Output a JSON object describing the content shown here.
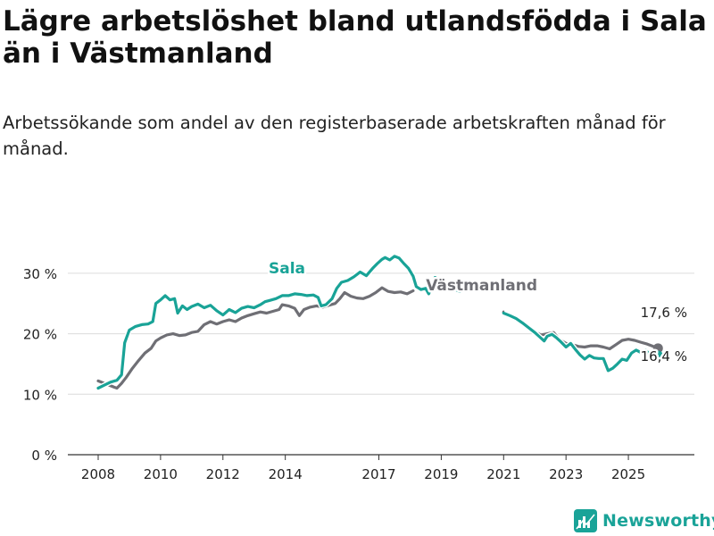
{
  "header": {
    "title": "Lägre arbetslöshet bland utlandsfödda i Sala än i Västmanland",
    "subtitle": "Arbetssökande som andel av den registerbaserade arbetskraften månad för månad."
  },
  "brand": {
    "name": "Newsworthy",
    "icon": "newsworthy-logo-icon",
    "color": "#1aa398"
  },
  "chart_data": {
    "type": "line",
    "title": "Lägre arbetslöshet bland utlandsfödda i Sala än i Västmanland",
    "subtitle": "Arbetssökande som andel av den registerbaserade arbetskraften månad för månad.",
    "xlabel": "",
    "ylabel": "",
    "xlim": [
      2008.0,
      2026.2
    ],
    "ylim": [
      0,
      35
    ],
    "grid": true,
    "x_ticks": [
      2008,
      2010,
      2012,
      2014,
      2017,
      2019,
      2021,
      2023,
      2025
    ],
    "x_tick_labels": [
      "2008",
      "2010",
      "2012",
      "2014",
      "2017",
      "2019",
      "2021",
      "2023",
      "2025"
    ],
    "y_ticks": [
      0,
      10,
      20,
      30
    ],
    "y_tick_labels": [
      "0 %",
      "10 %",
      "20 %",
      "30 %"
    ],
    "series": [
      {
        "name": "Västmanland",
        "label": "Västmanland",
        "color": "#6f6f75",
        "end_label": "17,6 %",
        "points": [
          [
            2008.0,
            12.2
          ],
          [
            2008.3,
            11.6
          ],
          [
            2008.5,
            11.2
          ],
          [
            2008.6,
            11.0
          ],
          [
            2008.75,
            11.8
          ],
          [
            2008.9,
            12.8
          ],
          [
            2009.1,
            14.3
          ],
          [
            2009.3,
            15.6
          ],
          [
            2009.5,
            16.8
          ],
          [
            2009.7,
            17.6
          ],
          [
            2009.85,
            18.8
          ],
          [
            2010.0,
            19.3
          ],
          [
            2010.2,
            19.8
          ],
          [
            2010.4,
            20.0
          ],
          [
            2010.6,
            19.7
          ],
          [
            2010.8,
            19.8
          ],
          [
            2011.0,
            20.2
          ],
          [
            2011.2,
            20.4
          ],
          [
            2011.4,
            21.5
          ],
          [
            2011.6,
            22.0
          ],
          [
            2011.8,
            21.6
          ],
          [
            2012.0,
            22.0
          ],
          [
            2012.2,
            22.3
          ],
          [
            2012.4,
            22.0
          ],
          [
            2012.6,
            22.6
          ],
          [
            2012.8,
            23.0
          ],
          [
            2013.0,
            23.3
          ],
          [
            2013.2,
            23.6
          ],
          [
            2013.4,
            23.4
          ],
          [
            2013.6,
            23.7
          ],
          [
            2013.8,
            24.0
          ],
          [
            2013.9,
            24.8
          ],
          [
            2014.1,
            24.6
          ],
          [
            2014.3,
            24.2
          ],
          [
            2014.45,
            23.0
          ],
          [
            2014.6,
            24.0
          ],
          [
            2014.8,
            24.4
          ],
          [
            2015.0,
            24.6
          ],
          [
            2015.2,
            24.4
          ],
          [
            2015.4,
            24.7
          ],
          [
            2015.6,
            25.0
          ],
          [
            2015.75,
            25.8
          ],
          [
            2015.9,
            26.8
          ],
          [
            2016.1,
            26.2
          ],
          [
            2016.3,
            25.9
          ],
          [
            2016.5,
            25.8
          ],
          [
            2016.7,
            26.2
          ],
          [
            2016.9,
            26.8
          ],
          [
            2017.1,
            27.6
          ],
          [
            2017.3,
            27.0
          ],
          [
            2017.5,
            26.8
          ],
          [
            2017.7,
            26.9
          ],
          [
            2017.9,
            26.6
          ],
          [
            2018.1,
            27.1
          ]
        ]
      },
      {
        "name": "Västmanland (senare)",
        "label": "",
        "color": "#6f6f75",
        "points": [
          [
            2021.0,
            23.6
          ],
          [
            2021.2,
            23.0
          ],
          [
            2021.4,
            22.4
          ],
          [
            2021.6,
            21.6
          ],
          [
            2021.8,
            20.9
          ],
          [
            2022.0,
            20.3
          ],
          [
            2022.2,
            19.8
          ],
          [
            2022.4,
            20.0
          ],
          [
            2022.6,
            20.2
          ],
          [
            2022.8,
            19.0
          ],
          [
            2023.0,
            18.4
          ],
          [
            2023.2,
            18.2
          ],
          [
            2023.4,
            17.9
          ],
          [
            2023.6,
            17.8
          ],
          [
            2023.8,
            18.0
          ],
          [
            2024.0,
            18.0
          ],
          [
            2024.2,
            17.8
          ],
          [
            2024.4,
            17.5
          ],
          [
            2024.6,
            18.2
          ],
          [
            2024.8,
            18.9
          ],
          [
            2025.0,
            19.1
          ],
          [
            2025.2,
            18.9
          ],
          [
            2025.4,
            18.6
          ],
          [
            2025.6,
            18.3
          ],
          [
            2025.8,
            17.9
          ],
          [
            2025.95,
            17.6
          ]
        ]
      },
      {
        "name": "Sala",
        "label": "Sala",
        "color": "#19a397",
        "end_label": "16,4 %",
        "points": [
          [
            2008.0,
            11.0
          ],
          [
            2008.2,
            11.5
          ],
          [
            2008.4,
            12.0
          ],
          [
            2008.6,
            12.3
          ],
          [
            2008.75,
            13.2
          ],
          [
            2008.85,
            18.5
          ],
          [
            2009.0,
            20.6
          ],
          [
            2009.2,
            21.2
          ],
          [
            2009.4,
            21.5
          ],
          [
            2009.6,
            21.6
          ],
          [
            2009.75,
            22.0
          ],
          [
            2009.85,
            25.0
          ],
          [
            2010.0,
            25.6
          ],
          [
            2010.15,
            26.3
          ],
          [
            2010.3,
            25.6
          ],
          [
            2010.45,
            25.8
          ],
          [
            2010.55,
            23.4
          ],
          [
            2010.7,
            24.6
          ],
          [
            2010.85,
            24.0
          ],
          [
            2011.0,
            24.5
          ],
          [
            2011.2,
            24.9
          ],
          [
            2011.4,
            24.3
          ],
          [
            2011.6,
            24.7
          ],
          [
            2011.8,
            23.8
          ],
          [
            2012.0,
            23.1
          ],
          [
            2012.2,
            24.0
          ],
          [
            2012.4,
            23.5
          ],
          [
            2012.6,
            24.2
          ],
          [
            2012.8,
            24.5
          ],
          [
            2013.0,
            24.3
          ],
          [
            2013.2,
            24.8
          ],
          [
            2013.35,
            25.3
          ],
          [
            2013.5,
            25.5
          ],
          [
            2013.7,
            25.8
          ],
          [
            2013.9,
            26.3
          ],
          [
            2014.1,
            26.3
          ],
          [
            2014.3,
            26.6
          ],
          [
            2014.5,
            26.5
          ],
          [
            2014.7,
            26.3
          ],
          [
            2014.9,
            26.4
          ],
          [
            2015.05,
            26.0
          ],
          [
            2015.15,
            24.6
          ],
          [
            2015.3,
            24.8
          ],
          [
            2015.5,
            25.8
          ],
          [
            2015.65,
            27.5
          ],
          [
            2015.8,
            28.5
          ],
          [
            2016.0,
            28.8
          ],
          [
            2016.2,
            29.4
          ],
          [
            2016.4,
            30.2
          ],
          [
            2016.6,
            29.6
          ],
          [
            2016.8,
            30.8
          ],
          [
            2016.95,
            31.6
          ],
          [
            2017.1,
            32.3
          ],
          [
            2017.2,
            32.6
          ],
          [
            2017.35,
            32.2
          ],
          [
            2017.5,
            32.8
          ],
          [
            2017.65,
            32.5
          ],
          [
            2017.8,
            31.6
          ],
          [
            2017.95,
            30.8
          ],
          [
            2018.1,
            29.5
          ],
          [
            2018.2,
            27.8
          ],
          [
            2018.35,
            27.3
          ],
          [
            2018.5,
            27.5
          ],
          [
            2018.6,
            26.6
          ],
          [
            2018.7,
            28.0
          ],
          [
            2018.8,
            29.3
          ],
          [
            2018.9,
            29.0
          ],
          [
            2019.0,
            28.6
          ],
          [
            2019.15,
            27.3
          ],
          [
            2019.3,
            27.6
          ],
          [
            2019.45,
            27.3
          ],
          [
            2019.6,
            27.0
          ],
          [
            2019.8,
            27.4
          ],
          [
            2020.0,
            27.8
          ]
        ]
      },
      {
        "name": "Sala (senare)",
        "label": "",
        "color": "#19a397",
        "points": [
          [
            2021.0,
            23.4
          ],
          [
            2021.2,
            23.0
          ],
          [
            2021.4,
            22.5
          ],
          [
            2021.6,
            21.8
          ],
          [
            2021.8,
            21.0
          ],
          [
            2022.0,
            20.2
          ],
          [
            2022.15,
            19.5
          ],
          [
            2022.3,
            18.8
          ],
          [
            2022.4,
            19.6
          ],
          [
            2022.55,
            19.9
          ],
          [
            2022.7,
            19.3
          ],
          [
            2022.85,
            18.6
          ],
          [
            2023.0,
            17.8
          ],
          [
            2023.15,
            18.4
          ],
          [
            2023.3,
            17.4
          ],
          [
            2023.45,
            16.5
          ],
          [
            2023.6,
            15.8
          ],
          [
            2023.75,
            16.4
          ],
          [
            2023.9,
            16.0
          ],
          [
            2024.05,
            15.9
          ],
          [
            2024.2,
            15.9
          ],
          [
            2024.35,
            13.9
          ],
          [
            2024.5,
            14.3
          ],
          [
            2024.65,
            15.0
          ],
          [
            2024.8,
            15.8
          ],
          [
            2024.95,
            15.6
          ],
          [
            2025.1,
            16.8
          ],
          [
            2025.25,
            17.3
          ],
          [
            2025.4,
            16.9
          ],
          [
            2025.55,
            17.3
          ],
          [
            2025.7,
            16.5
          ],
          [
            2025.85,
            16.4
          ],
          [
            2025.95,
            16.4
          ]
        ]
      }
    ],
    "annotations": [
      {
        "text": "Sala",
        "series": "Sala",
        "x": 2013.0,
        "y": 26.3
      },
      {
        "text": "Västmanland",
        "series": "Västmanland",
        "x": 2019.8,
        "y": 24.0
      },
      {
        "text": "17,6 %",
        "series": "Västmanland",
        "x": 2025.95,
        "y": 17.6
      },
      {
        "text": "16,4 %",
        "series": "Sala",
        "x": 2025.95,
        "y": 16.4
      }
    ]
  }
}
